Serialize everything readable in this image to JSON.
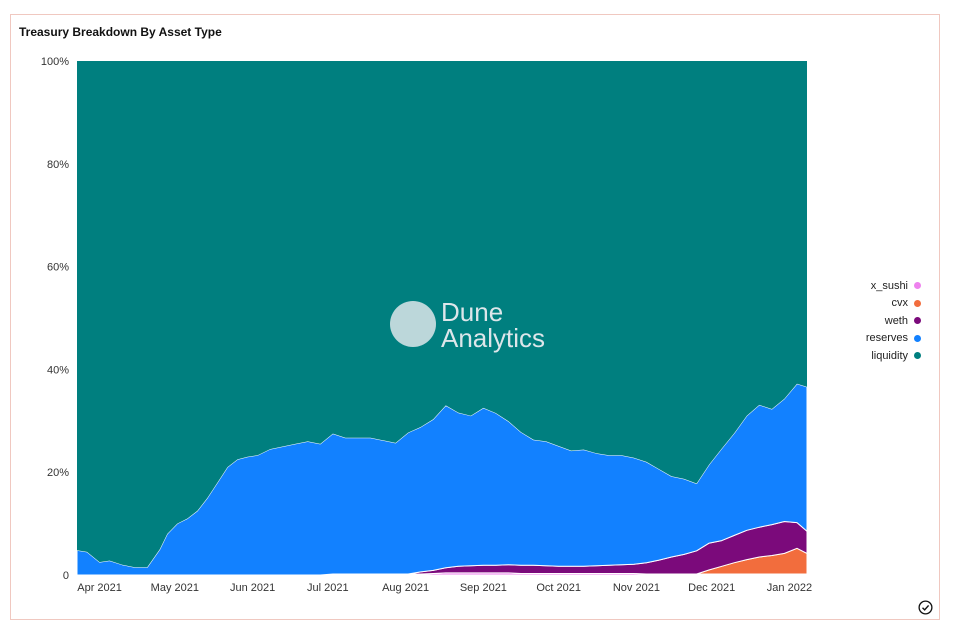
{
  "card": {
    "title": "Treasury Breakdown By Asset Type"
  },
  "watermark": {
    "line1": "Dune",
    "line2": "Analytics"
  },
  "colors": {
    "x_sushi": "#ee82ee",
    "cvx": "#f26d3d",
    "weth": "#7b0a7b",
    "reserves": "#1281ff",
    "liquidity": "#007f7f"
  },
  "chart_data": {
    "type": "area",
    "stacked_percent": true,
    "title": "Treasury Breakdown By Asset Type",
    "xlabel": "",
    "ylabel": "",
    "ylim": [
      0,
      100
    ],
    "y_ticks": [
      "0",
      "20%",
      "40%",
      "60%",
      "80%",
      "100%"
    ],
    "x_ticks": [
      "Apr 2021",
      "May 2021",
      "Jun 2021",
      "Jul 2021",
      "Aug 2021",
      "Sep 2021",
      "Oct 2021",
      "Nov 2021",
      "Dec 2021",
      "Jan 2022"
    ],
    "x_range": [
      "2021-03-23",
      "2022-01-08"
    ],
    "legend_position": "right",
    "x": [
      "2021-03-23",
      "2021-03-27",
      "2021-04-01",
      "2021-04-05",
      "2021-04-10",
      "2021-04-15",
      "2021-04-20",
      "2021-04-25",
      "2021-04-28",
      "2021-05-02",
      "2021-05-06",
      "2021-05-10",
      "2021-05-14",
      "2021-05-18",
      "2021-05-22",
      "2021-05-26",
      "2021-05-30",
      "2021-06-03",
      "2021-06-08",
      "2021-06-13",
      "2021-06-18",
      "2021-06-23",
      "2021-06-28",
      "2021-07-03",
      "2021-07-08",
      "2021-07-13",
      "2021-07-18",
      "2021-07-23",
      "2021-07-28",
      "2021-08-02",
      "2021-08-07",
      "2021-08-12",
      "2021-08-17",
      "2021-08-22",
      "2021-08-27",
      "2021-09-01",
      "2021-09-06",
      "2021-09-11",
      "2021-09-16",
      "2021-09-21",
      "2021-09-26",
      "2021-10-01",
      "2021-10-06",
      "2021-10-11",
      "2021-10-16",
      "2021-10-21",
      "2021-10-26",
      "2021-10-31",
      "2021-11-05",
      "2021-11-10",
      "2021-11-15",
      "2021-11-20",
      "2021-11-25",
      "2021-11-30",
      "2021-12-05",
      "2021-12-10",
      "2021-12-15",
      "2021-12-20",
      "2021-12-25",
      "2021-12-30",
      "2022-01-04",
      "2022-01-08"
    ],
    "series": [
      {
        "name": "x_sushi",
        "values": [
          0,
          0,
          0,
          0,
          0,
          0,
          0,
          0,
          0,
          0,
          0,
          0,
          0,
          0,
          0,
          0,
          0,
          0,
          0,
          0,
          0,
          0,
          0,
          0.2,
          0.2,
          0.2,
          0.2,
          0.2,
          0.2,
          0.2,
          0.2,
          0.3,
          0.4,
          0.4,
          0.4,
          0.4,
          0.4,
          0.4,
          0.3,
          0.3,
          0.3,
          0.3,
          0.3,
          0.3,
          0.3,
          0.3,
          0.3,
          0.3,
          0.2,
          0.2,
          0.2,
          0.2,
          0.2,
          0.2,
          0.2,
          0.2,
          0.2,
          0.2,
          0.2,
          0.2,
          0.2,
          0.2
        ]
      },
      {
        "name": "cvx",
        "values": [
          0,
          0,
          0,
          0,
          0,
          0,
          0,
          0,
          0,
          0,
          0,
          0,
          0,
          0,
          0,
          0,
          0,
          0,
          0,
          0,
          0,
          0,
          0,
          0,
          0,
          0,
          0,
          0,
          0,
          0,
          0,
          0,
          0,
          0,
          0,
          0,
          0,
          0,
          0,
          0,
          0,
          0,
          0,
          0,
          0,
          0,
          0,
          0,
          0,
          0,
          0,
          0,
          0,
          0.8,
          1.5,
          2.2,
          2.8,
          3.3,
          3.6,
          4.0,
          5.0,
          4.0
        ]
      },
      {
        "name": "weth",
        "values": [
          0,
          0,
          0,
          0,
          0,
          0,
          0,
          0,
          0,
          0,
          0,
          0,
          0,
          0,
          0,
          0,
          0,
          0,
          0,
          0,
          0,
          0,
          0,
          0,
          0,
          0,
          0,
          0,
          0,
          0,
          0.4,
          0.6,
          1.0,
          1.3,
          1.4,
          1.5,
          1.5,
          1.6,
          1.6,
          1.6,
          1.5,
          1.4,
          1.4,
          1.4,
          1.5,
          1.6,
          1.7,
          1.8,
          2.2,
          2.7,
          3.3,
          3.8,
          4.5,
          5.2,
          5.0,
          5.3,
          5.7,
          5.8,
          6.0,
          6.2,
          5.0,
          4.3
        ]
      },
      {
        "name": "reserves",
        "values": [
          4.8,
          4.5,
          2.5,
          2.8,
          2.0,
          1.5,
          1.5,
          5.0,
          8.0,
          10.0,
          11.0,
          12.5,
          15.0,
          18.0,
          21.0,
          22.5,
          23.0,
          23.3,
          24.5,
          25.0,
          25.5,
          26.0,
          25.5,
          27.3,
          26.5,
          26.5,
          26.5,
          26.0,
          25.5,
          27.5,
          28.2,
          29.4,
          31.6,
          29.9,
          29.2,
          30.6,
          29.6,
          27.9,
          25.9,
          24.4,
          24.2,
          23.4,
          22.5,
          22.7,
          21.9,
          21.4,
          21.3,
          20.7,
          19.6,
          17.7,
          15.7,
          14.7,
          13.1,
          15.3,
          17.9,
          19.9,
          22.3,
          23.8,
          22.5,
          23.9,
          27.0,
          28.1
        ]
      },
      {
        "name": "liquidity",
        "values": [
          95.2,
          95.5,
          97.5,
          97.2,
          98.0,
          98.5,
          98.5,
          95.0,
          92.0,
          90.0,
          89.0,
          87.5,
          85.0,
          82.0,
          79.0,
          77.5,
          77.0,
          76.7,
          75.5,
          75.0,
          74.5,
          74.0,
          74.5,
          72.5,
          73.3,
          73.3,
          73.3,
          73.8,
          74.3,
          72.3,
          71.2,
          69.7,
          67.0,
          68.4,
          69.0,
          67.5,
          68.5,
          70.1,
          72.2,
          73.7,
          74.0,
          74.9,
          75.8,
          75.6,
          76.3,
          76.7,
          76.7,
          77.2,
          78.0,
          79.4,
          80.8,
          81.3,
          82.2,
          78.5,
          75.4,
          72.4,
          69.0,
          66.9,
          67.7,
          65.7,
          62.8,
          63.4
        ]
      }
    ]
  }
}
